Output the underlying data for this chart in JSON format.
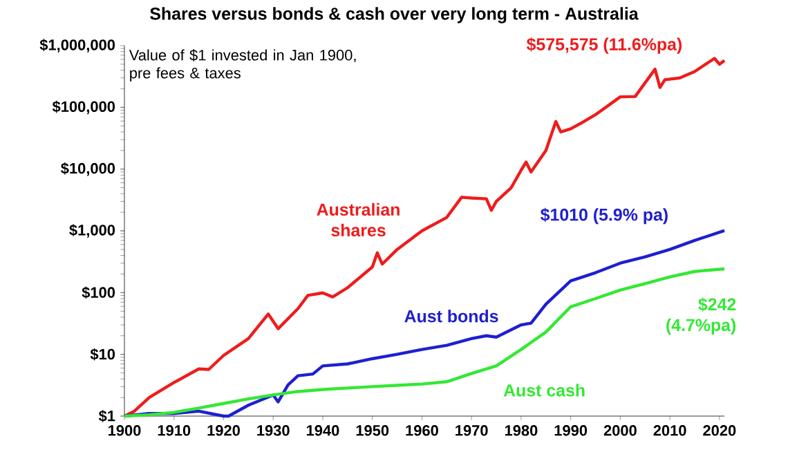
{
  "chart_data": {
    "type": "line",
    "title": "Shares versus bonds & cash over very long term - Australia",
    "ylim": [
      1,
      1000000
    ],
    "xlim": [
      1900,
      2021
    ],
    "log": "y",
    "legend": false,
    "grid": false,
    "marker": "none",
    "line_style": "solid",
    "xticks": [
      1900,
      1910,
      1920,
      1930,
      1940,
      1950,
      1960,
      1970,
      1980,
      1990,
      2000,
      2010,
      2020
    ],
    "yticks": [
      {
        "value": 1,
        "label": "$1"
      },
      {
        "value": 10,
        "label": "$10"
      },
      {
        "value": 100,
        "label": "$100"
      },
      {
        "value": 1000,
        "label": "$1,000"
      },
      {
        "value": 10000,
        "label": "$10,000"
      },
      {
        "value": 100000,
        "label": "$100,000"
      },
      {
        "value": 1000000,
        "label": "$1,000,000"
      }
    ],
    "series": [
      {
        "name": "Australian shares",
        "color": "#ee1c1c",
        "x": [
          1900,
          1902,
          1905,
          1910,
          1915,
          1917,
          1920,
          1925,
          1929,
          1931,
          1935,
          1937,
          1940,
          1942,
          1945,
          1950,
          1951,
          1952,
          1955,
          1960,
          1965,
          1968,
          1970,
          1973,
          1974,
          1975,
          1978,
          1980,
          1981,
          1982,
          1985,
          1987,
          1988,
          1990,
          1992,
          1995,
          2000,
          2003,
          2007,
          2008,
          2009,
          2012,
          2015,
          2019,
          2020,
          2021
        ],
        "values": [
          1,
          1.2,
          2,
          3.5,
          5.8,
          5.7,
          9.6,
          18,
          45,
          26,
          55,
          90,
          99,
          85,
          120,
          260,
          440,
          290,
          500,
          1000,
          1650,
          3500,
          3400,
          3300,
          2150,
          3000,
          5000,
          9600,
          13000,
          9000,
          20000,
          59000,
          40000,
          45000,
          55000,
          76000,
          148000,
          150000,
          415000,
          210000,
          280000,
          300000,
          380000,
          620000,
          500000,
          575575
        ]
      },
      {
        "name": "Aust bonds",
        "color": "#1f1fd0",
        "x": [
          1900,
          1905,
          1910,
          1915,
          1920,
          1921,
          1925,
          1930,
          1931,
          1933,
          1935,
          1938,
          1940,
          1945,
          1950,
          1955,
          1960,
          1965,
          1970,
          1973,
          1975,
          1980,
          1982,
          1985,
          1990,
          1995,
          2000,
          2005,
          2010,
          2015,
          2021
        ],
        "values": [
          1,
          1.1,
          1.1,
          1.2,
          1.0,
          1.0,
          1.5,
          2.2,
          1.7,
          3.2,
          4.5,
          4.8,
          6.5,
          7,
          8.5,
          10,
          12,
          14,
          18,
          20,
          19,
          30,
          32,
          65,
          155,
          210,
          300,
          380,
          500,
          700,
          1010
        ]
      },
      {
        "name": "Aust cash",
        "color": "#33e833",
        "x": [
          1900,
          1905,
          1910,
          1915,
          1920,
          1925,
          1930,
          1935,
          1940,
          1945,
          1950,
          1955,
          1960,
          1965,
          1970,
          1975,
          1980,
          1985,
          1990,
          1995,
          2000,
          2005,
          2010,
          2015,
          2021
        ],
        "values": [
          1,
          1.05,
          1.15,
          1.35,
          1.6,
          1.9,
          2.2,
          2.5,
          2.7,
          2.85,
          3.0,
          3.15,
          3.3,
          3.6,
          4.9,
          6.5,
          12,
          23,
          59,
          80,
          110,
          140,
          180,
          220,
          242
        ]
      }
    ],
    "annotations": [
      "Value of $1 invested in Jan 1900, pre fees & taxes",
      "$575,575 (11.6%pa)",
      "$1010 (5.9% pa)",
      "$242 (4.7%pa)"
    ]
  }
}
